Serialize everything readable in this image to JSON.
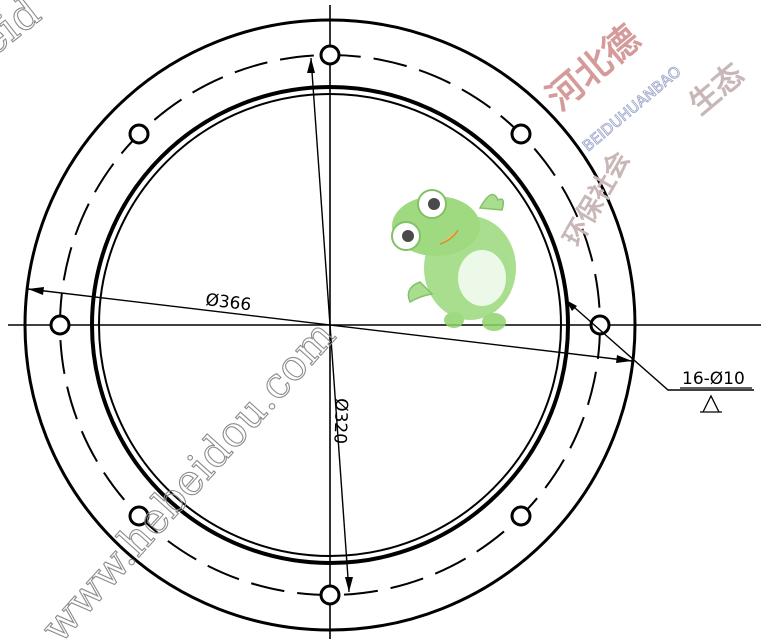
{
  "drawing": {
    "dimension_outer": "Ø366",
    "dimension_inner": "Ø320",
    "hole_callout": "16-Ø10",
    "hole_callout_symbol": "A"
  },
  "watermark": {
    "cn_title": "河北德",
    "cn_line2": "生态",
    "cn_line3": "环保社会",
    "en_text": "BEIDUHUANBAO",
    "url": "www.hebeidou.com",
    "corner_text": "eid"
  }
}
